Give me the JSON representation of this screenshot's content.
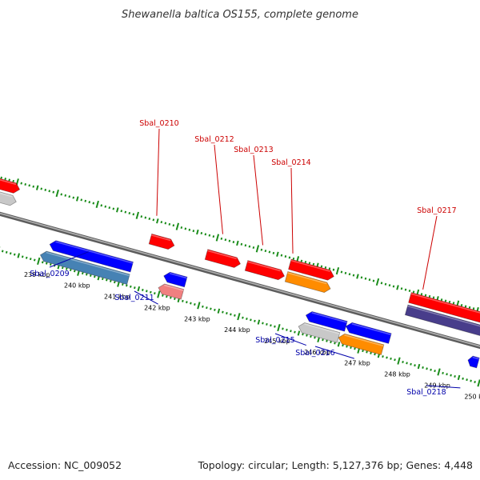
{
  "title": "Shewanella baltica OS155, complete genome",
  "footer": {
    "accession": "Accession: NC_009052",
    "summary": "Topology: circular; Length: 5,127,376 bp; Genes: 4,448"
  },
  "colors": {
    "backbone": "#8c8c8c",
    "ticks": "#1a8c1a",
    "label_forward": "#cc0000",
    "label_reverse": "#0000aa",
    "red": "#ff0000",
    "blue": "#0000ff",
    "orange": "#ff8c00",
    "grey": "#c8c8c8",
    "steelblue": "#4682b4",
    "darkslateblue": "#483d8b",
    "pink": "#f08080"
  },
  "kbp_labels": [
    "239 kbp",
    "240 kbp",
    "241 kbp",
    "242 kbp",
    "243 kbp",
    "244 kbp",
    "245 kbp",
    "246 kbp",
    "247 kbp",
    "248 kbp",
    "249 kbp",
    "250 kbp"
  ],
  "genes": [
    {
      "strand": "forward",
      "start_kbp": 237.2,
      "end_kbp": 238.1,
      "color": "grey"
    },
    {
      "strand": "forward",
      "start_kbp": 237.2,
      "end_kbp": 238.1,
      "color": "red"
    },
    {
      "strand": "reverse",
      "start_kbp": 239.15,
      "end_kbp": 241.2,
      "color": "blue"
    },
    {
      "strand": "reverse",
      "start_kbp": 239.0,
      "end_kbp": 241.2,
      "color": "steelblue"
    },
    {
      "strand": "forward",
      "start_kbp": 241.45,
      "end_kbp": 242.05,
      "color": "red"
    },
    {
      "strand": "reverse",
      "start_kbp": 242.0,
      "end_kbp": 242.55,
      "color": "blue"
    },
    {
      "strand": "reverse",
      "start_kbp": 241.95,
      "end_kbp": 242.55,
      "color": "pink"
    },
    {
      "strand": "forward",
      "start_kbp": 242.85,
      "end_kbp": 243.7,
      "color": "red"
    },
    {
      "strand": "forward",
      "start_kbp": 243.85,
      "end_kbp": 244.8,
      "color": "red"
    },
    {
      "strand": "forward",
      "start_kbp": 244.85,
      "end_kbp": 245.95,
      "color": "orange"
    },
    {
      "strand": "forward",
      "start_kbp": 244.85,
      "end_kbp": 245.95,
      "color": "red"
    },
    {
      "strand": "reverse",
      "start_kbp": 245.55,
      "end_kbp": 246.55,
      "color": "blue"
    },
    {
      "strand": "reverse",
      "start_kbp": 245.45,
      "end_kbp": 246.45,
      "color": "grey"
    },
    {
      "strand": "reverse",
      "start_kbp": 246.55,
      "end_kbp": 247.65,
      "color": "blue"
    },
    {
      "strand": "reverse",
      "start_kbp": 246.45,
      "end_kbp": 247.55,
      "color": "orange"
    },
    {
      "strand": "forward",
      "start_kbp": 247.85,
      "end_kbp": 250.1,
      "color": "darkslateblue"
    },
    {
      "strand": "forward",
      "start_kbp": 247.85,
      "end_kbp": 250.1,
      "color": "red"
    },
    {
      "strand": "reverse",
      "start_kbp": 249.6,
      "end_kbp": 249.85,
      "color": "blue"
    },
    {
      "strand": "reverse",
      "start_kbp": 250.0,
      "end_kbp": 250.7,
      "color": "blue"
    },
    {
      "strand": "reverse",
      "start_kbp": 250.0,
      "end_kbp": 250.7,
      "color": "blue"
    }
  ],
  "gene_labels": [
    {
      "text": "Sbal_0209",
      "strand": "reverse"
    },
    {
      "text": "Sbal_0210",
      "strand": "forward"
    },
    {
      "text": "Sbal_0211",
      "strand": "reverse"
    },
    {
      "text": "Sbal_0212",
      "strand": "forward"
    },
    {
      "text": "Sbal_0213",
      "strand": "forward"
    },
    {
      "text": "Sbal_0214",
      "strand": "forward"
    },
    {
      "text": "Sbal_0215",
      "strand": "reverse"
    },
    {
      "text": "Sbal_0216",
      "strand": "reverse"
    },
    {
      "text": "Sbal_0217",
      "strand": "forward"
    },
    {
      "text": "Sbal_0218",
      "strand": "reverse"
    }
  ]
}
